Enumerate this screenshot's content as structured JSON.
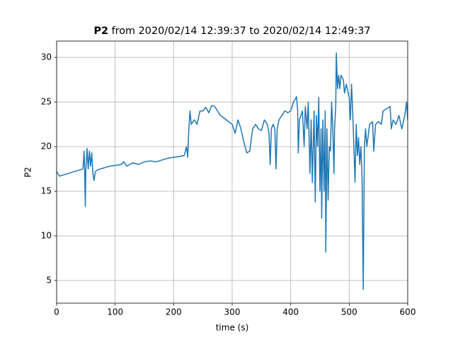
{
  "chart_data": {
    "type": "line",
    "title_bold": "P2",
    "title": "from 2020/02/14 12:39:37 to 2020/02/14 12:49:37",
    "xlabel": "time (s)",
    "ylabel": "P2",
    "xlim": [
      0,
      600
    ],
    "ylim": [
      2.46,
      31.83
    ],
    "xticks": [
      0,
      100,
      200,
      300,
      400,
      500,
      600
    ],
    "yticks": [
      5,
      10,
      15,
      20,
      25,
      30
    ],
    "grid": true,
    "x": [
      0,
      5,
      10,
      20,
      30,
      40,
      45,
      47,
      48,
      49,
      50,
      52,
      54,
      56,
      58,
      60,
      62,
      64,
      66,
      70,
      80,
      90,
      100,
      110,
      115,
      120,
      130,
      140,
      150,
      160,
      170,
      180,
      190,
      200,
      210,
      218,
      222,
      224,
      226,
      228,
      230,
      235,
      240,
      245,
      250,
      255,
      260,
      265,
      270,
      275,
      280,
      290,
      300,
      305,
      310,
      315,
      320,
      325,
      330,
      335,
      340,
      345,
      350,
      355,
      360,
      363,
      365,
      367,
      370,
      373,
      375,
      377,
      380,
      385,
      390,
      395,
      400,
      405,
      410,
      412,
      413,
      415,
      420,
      423,
      425,
      428,
      430,
      433,
      435,
      437,
      440,
      442,
      444,
      446,
      448,
      450,
      452,
      453,
      455,
      457,
      459,
      460,
      462,
      464,
      466,
      468,
      470,
      472,
      474,
      475,
      477,
      478,
      480,
      482,
      484,
      486,
      490,
      492,
      495,
      500,
      502,
      504,
      506,
      508,
      510,
      512,
      514,
      516,
      518,
      520,
      522,
      524,
      526,
      528,
      530,
      532,
      535,
      540,
      542,
      545,
      550,
      555,
      558,
      565,
      570,
      572,
      575,
      580,
      585,
      590,
      595,
      598,
      600
    ],
    "series": [
      {
        "name": "P2",
        "color": "#1f77b4",
        "values": [
          17.2,
          16.7,
          16.8,
          17.0,
          17.2,
          17.4,
          17.5,
          19.5,
          17.0,
          13.3,
          17.5,
          19.8,
          17.5,
          19.5,
          17.8,
          19.3,
          17.0,
          16.2,
          17.2,
          17.4,
          17.6,
          17.8,
          17.9,
          18.0,
          18.3,
          17.8,
          18.2,
          18.0,
          18.3,
          18.4,
          18.3,
          18.5,
          18.7,
          18.8,
          18.9,
          19.0,
          20.0,
          18.8,
          22.0,
          24.0,
          22.5,
          23.0,
          22.5,
          24.0,
          24.0,
          24.4,
          23.8,
          24.6,
          24.5,
          24.0,
          23.5,
          23.0,
          22.5,
          21.5,
          23.0,
          22.0,
          20.5,
          19.3,
          19.5,
          22.0,
          22.5,
          22.0,
          21.8,
          23.0,
          22.5,
          21.5,
          18.0,
          22.0,
          22.5,
          22.0,
          17.5,
          22.0,
          23.0,
          23.5,
          24.0,
          23.8,
          24.0,
          25.0,
          25.6,
          24.0,
          19.3,
          23.0,
          24.0,
          20.0,
          24.5,
          22.0,
          25.0,
          17.0,
          23.0,
          16.0,
          24.0,
          13.8,
          23.5,
          20.0,
          25.5,
          15.0,
          22.0,
          12.0,
          23.0,
          15.0,
          24.0,
          8.2,
          22.0,
          14.0,
          20.0,
          19.5,
          25.0,
          22.0,
          17.0,
          22.0,
          24.5,
          30.5,
          26.5,
          28.0,
          26.5,
          28.0,
          27.5,
          26.0,
          27.0,
          25.5,
          23.0,
          27.0,
          24.0,
          20.0,
          16.0,
          22.5,
          19.0,
          21.0,
          18.0,
          20.0,
          16.5,
          4.0,
          20.0,
          22.0,
          20.0,
          21.0,
          22.5,
          22.8,
          19.5,
          22.5,
          22.8,
          22.5,
          24.0,
          24.3,
          24.5,
          22.0,
          23.0,
          22.5,
          23.5,
          22.0,
          23.5,
          25.0,
          23.0
        ]
      }
    ]
  }
}
